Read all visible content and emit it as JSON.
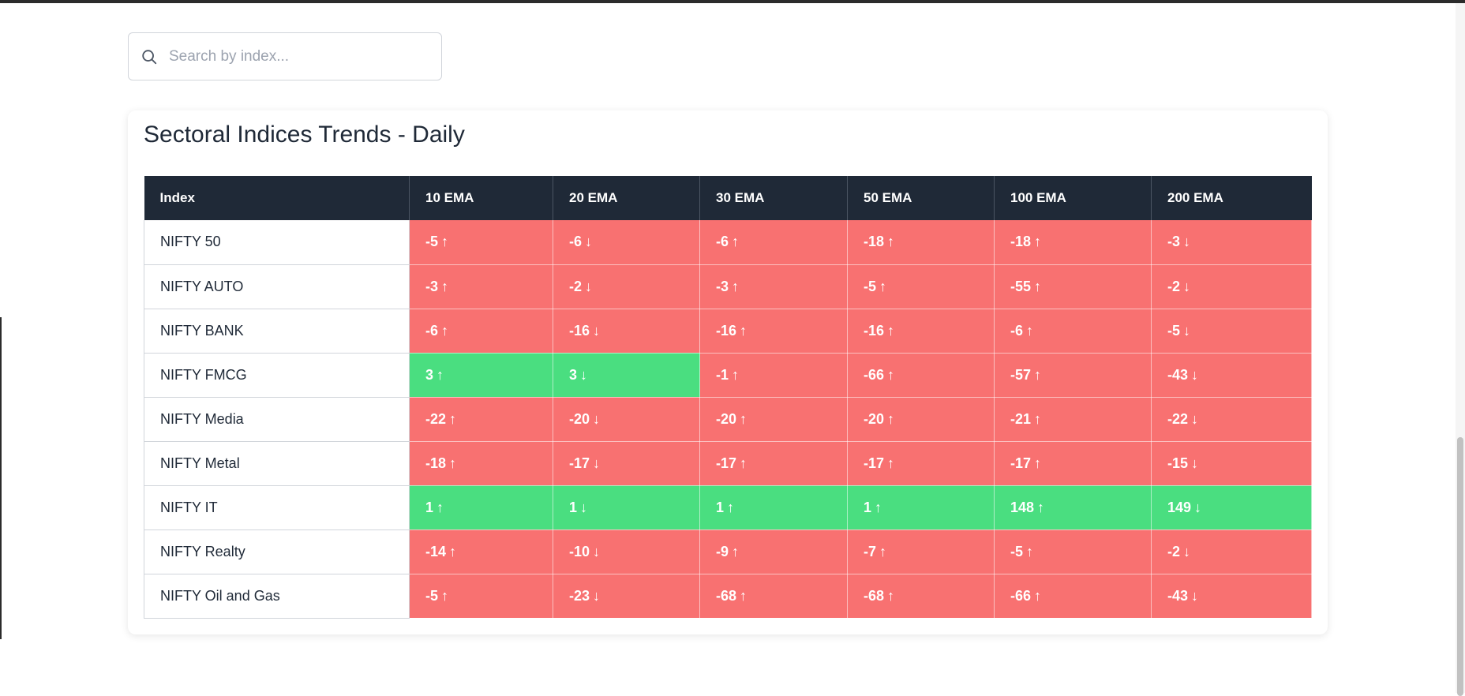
{
  "search": {
    "placeholder": "Search by index...",
    "value": ""
  },
  "card": {
    "title": "Sectoral Indices Trends - Daily"
  },
  "colors": {
    "header_bg": "#1f2937",
    "negative": "#f87171",
    "positive": "#4ade80"
  },
  "table": {
    "headers": [
      "Index",
      "10 EMA",
      "20 EMA",
      "30 EMA",
      "50 EMA",
      "100 EMA",
      "200 EMA"
    ],
    "rows": [
      {
        "index": "NIFTY 50",
        "cells": [
          {
            "value": "-5",
            "arrow": "↑"
          },
          {
            "value": "-6",
            "arrow": "↓"
          },
          {
            "value": "-6",
            "arrow": "↑"
          },
          {
            "value": "-18",
            "arrow": "↑"
          },
          {
            "value": "-18",
            "arrow": "↑"
          },
          {
            "value": "-3",
            "arrow": "↓"
          }
        ]
      },
      {
        "index": "NIFTY AUTO",
        "cells": [
          {
            "value": "-3",
            "arrow": "↑"
          },
          {
            "value": "-2",
            "arrow": "↓"
          },
          {
            "value": "-3",
            "arrow": "↑"
          },
          {
            "value": "-5",
            "arrow": "↑"
          },
          {
            "value": "-55",
            "arrow": "↑"
          },
          {
            "value": "-2",
            "arrow": "↓"
          }
        ]
      },
      {
        "index": "NIFTY BANK",
        "cells": [
          {
            "value": "-6",
            "arrow": "↑"
          },
          {
            "value": "-16",
            "arrow": "↓"
          },
          {
            "value": "-16",
            "arrow": "↑"
          },
          {
            "value": "-16",
            "arrow": "↑"
          },
          {
            "value": "-6",
            "arrow": "↑"
          },
          {
            "value": "-5",
            "arrow": "↓"
          }
        ]
      },
      {
        "index": "NIFTY FMCG",
        "cells": [
          {
            "value": "3",
            "arrow": "↑"
          },
          {
            "value": "3",
            "arrow": "↓"
          },
          {
            "value": "-1",
            "arrow": "↑"
          },
          {
            "value": "-66",
            "arrow": "↑"
          },
          {
            "value": "-57",
            "arrow": "↑"
          },
          {
            "value": "-43",
            "arrow": "↓"
          }
        ]
      },
      {
        "index": "NIFTY Media",
        "cells": [
          {
            "value": "-22",
            "arrow": "↑"
          },
          {
            "value": "-20",
            "arrow": "↓"
          },
          {
            "value": "-20",
            "arrow": "↑"
          },
          {
            "value": "-20",
            "arrow": "↑"
          },
          {
            "value": "-21",
            "arrow": "↑"
          },
          {
            "value": "-22",
            "arrow": "↓"
          }
        ]
      },
      {
        "index": "NIFTY Metal",
        "cells": [
          {
            "value": "-18",
            "arrow": "↑"
          },
          {
            "value": "-17",
            "arrow": "↓"
          },
          {
            "value": "-17",
            "arrow": "↑"
          },
          {
            "value": "-17",
            "arrow": "↑"
          },
          {
            "value": "-17",
            "arrow": "↑"
          },
          {
            "value": "-15",
            "arrow": "↓"
          }
        ]
      },
      {
        "index": "NIFTY IT",
        "cells": [
          {
            "value": "1",
            "arrow": "↑"
          },
          {
            "value": "1",
            "arrow": "↓"
          },
          {
            "value": "1",
            "arrow": "↑"
          },
          {
            "value": "1",
            "arrow": "↑"
          },
          {
            "value": "148",
            "arrow": "↑"
          },
          {
            "value": "149",
            "arrow": "↓"
          }
        ]
      },
      {
        "index": "NIFTY Realty",
        "cells": [
          {
            "value": "-14",
            "arrow": "↑"
          },
          {
            "value": "-10",
            "arrow": "↓"
          },
          {
            "value": "-9",
            "arrow": "↑"
          },
          {
            "value": "-7",
            "arrow": "↑"
          },
          {
            "value": "-5",
            "arrow": "↑"
          },
          {
            "value": "-2",
            "arrow": "↓"
          }
        ]
      },
      {
        "index": "NIFTY Oil and Gas",
        "cells": [
          {
            "value": "-5",
            "arrow": "↑"
          },
          {
            "value": "-23",
            "arrow": "↓"
          },
          {
            "value": "-68",
            "arrow": "↑"
          },
          {
            "value": "-68",
            "arrow": "↑"
          },
          {
            "value": "-66",
            "arrow": "↑"
          },
          {
            "value": "-43",
            "arrow": "↓"
          }
        ]
      }
    ]
  }
}
